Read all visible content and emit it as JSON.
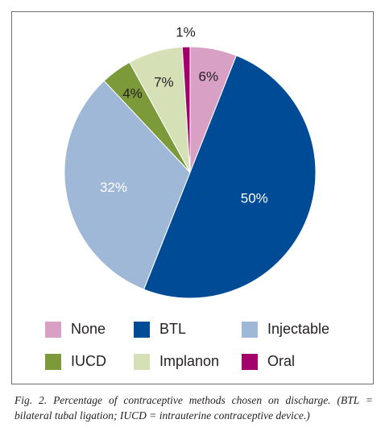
{
  "chart_data": {
    "type": "pie",
    "slices": [
      {
        "label": "None",
        "value": 6,
        "display": "6%",
        "color": "#d9a0c6"
      },
      {
        "label": "BTL",
        "value": 50,
        "display": "50%",
        "color": "#004b96"
      },
      {
        "label": "Injectable",
        "value": 32,
        "display": "32%",
        "color": "#9fb8d7"
      },
      {
        "label": "IUCD",
        "value": 4,
        "display": "4%",
        "color": "#7c9a3a"
      },
      {
        "label": "Implanon",
        "value": 7,
        "display": "7%",
        "color": "#d5e0b6"
      },
      {
        "label": "Oral",
        "value": 1,
        "display": "1%",
        "color": "#a4006b"
      }
    ],
    "legend_placement": "bottom"
  },
  "legend": [
    {
      "label": "None",
      "color": "#d9a0c6"
    },
    {
      "label": "BTL",
      "color": "#004b96"
    },
    {
      "label": "Injectable",
      "color": "#9fb8d7"
    },
    {
      "label": "IUCD",
      "color": "#7c9a3a"
    },
    {
      "label": "Implanon",
      "color": "#d5e0b6"
    },
    {
      "label": "Oral",
      "color": "#a4006b"
    }
  ],
  "caption": "Fig. 2. Percentage of contraceptive methods chosen on discharge. (BTL = bilateral tubal ligation; IUCD = intrauterine contraceptive device.)"
}
